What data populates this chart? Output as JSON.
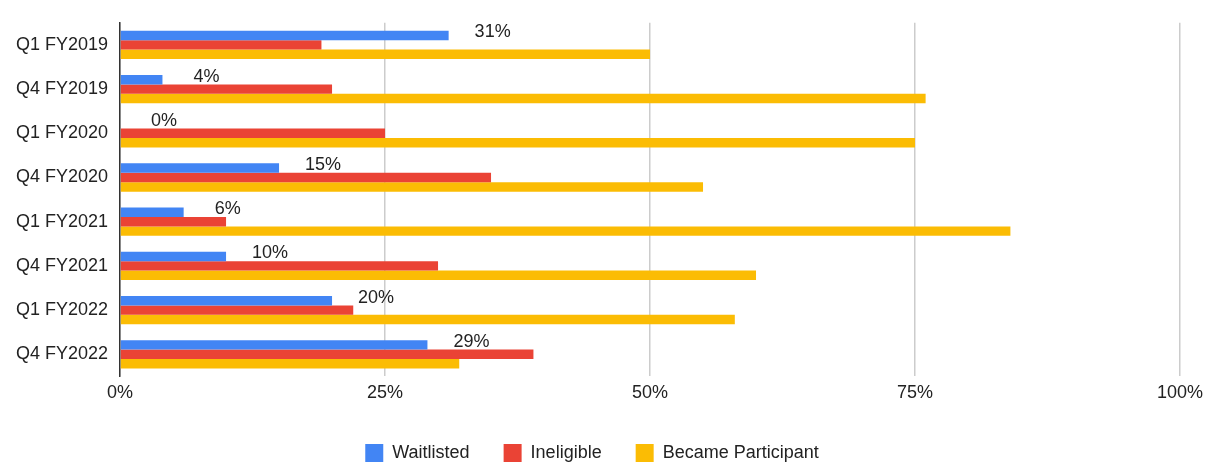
{
  "chart_data": {
    "type": "bar",
    "orientation": "horizontal",
    "categories": [
      "Q1 FY2019",
      "Q4 FY2019",
      "Q1 FY2020",
      "Q4 FY2020",
      "Q1 FY2021",
      "Q4 FY2021",
      "Q1 FY2022",
      "Q4 FY2022"
    ],
    "series": [
      {
        "name": "Waitlisted",
        "color": "#4285f4",
        "values": [
          31,
          4,
          0,
          15,
          6,
          10,
          20,
          29
        ],
        "value_labels": [
          "31%",
          "4%",
          "0%",
          "15%",
          "6%",
          "10%",
          "20%",
          "29%"
        ]
      },
      {
        "name": "Ineligible",
        "color": "#ea4335",
        "values": [
          19,
          20,
          25,
          35,
          10,
          30,
          22,
          39
        ]
      },
      {
        "name": "Became Participant",
        "color": "#fbbc04",
        "values": [
          50,
          76,
          75,
          55,
          84,
          60,
          58,
          32
        ]
      }
    ],
    "xlim": [
      0,
      100
    ],
    "xticks": [
      {
        "value": 0,
        "label": "0%"
      },
      {
        "value": 25,
        "label": "25%"
      },
      {
        "value": 50,
        "label": "50%"
      },
      {
        "value": 75,
        "label": "75%"
      },
      {
        "value": 100,
        "label": "100%"
      }
    ],
    "grid": "x",
    "legend": "bottom"
  }
}
